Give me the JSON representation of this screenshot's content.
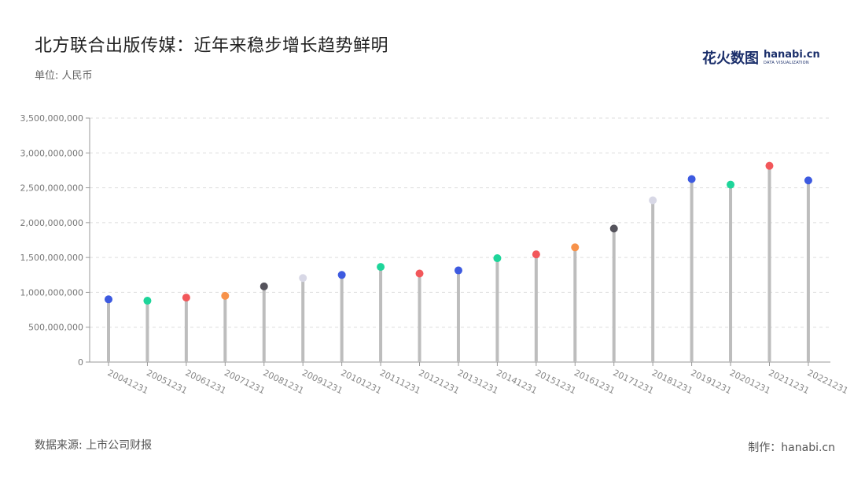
{
  "title": "北方联合出版传媒：近年来稳步增长趋势鲜明",
  "unit_label": "单位: 人民币",
  "source": "数据来源: 上市公司财报",
  "credit": "制作：hanabi.cn",
  "brand": {
    "cn": "花火数图",
    "en": "hanabi.cn",
    "sub": "DATA VISUALIZATION",
    "color": "#1b2f6b"
  },
  "chart_data": {
    "type": "lollipop",
    "categories": [
      "20041231",
      "20051231",
      "20061231",
      "20071231",
      "20081231",
      "20091231",
      "20101231",
      "20111231",
      "20121231",
      "20131231",
      "20141231",
      "20151231",
      "20161231",
      "20171231",
      "20181231",
      "20191231",
      "20201231",
      "20211231",
      "20221231"
    ],
    "values": [
      900000000,
      880000000,
      925000000,
      950000000,
      1085000000,
      1205000000,
      1250000000,
      1365000000,
      1270000000,
      1315000000,
      1490000000,
      1545000000,
      1645000000,
      1915000000,
      2320000000,
      2625000000,
      2545000000,
      2815000000,
      2605000000
    ],
    "colors": [
      "#3d5ae0",
      "#1ed59a",
      "#f2575a",
      "#f7924a",
      "#55535c",
      "#d8d8e6",
      "#3d5ae0",
      "#1ed59a",
      "#f2575a",
      "#3d5ae0",
      "#1ed59a",
      "#f2575a",
      "#f7924a",
      "#55535c",
      "#d8d8e6",
      "#3d5ae0",
      "#1ed59a",
      "#f2575a",
      "#3d5ae0"
    ],
    "yticks": [
      0,
      500000000,
      1000000000,
      1500000000,
      2000000000,
      2500000000,
      3000000000,
      3500000000
    ],
    "ytick_labels": [
      "0",
      "500,000,000",
      "1,000,000,000",
      "1,500,000,000",
      "2,000,000,000",
      "2,500,000,000",
      "3,000,000,000",
      "3,500,000,000"
    ],
    "ylim": [
      0,
      3500000000
    ],
    "stem_color": "#bdbdbd",
    "grid": true
  }
}
